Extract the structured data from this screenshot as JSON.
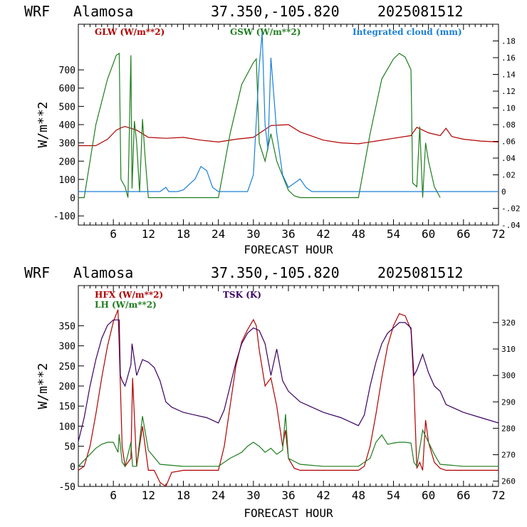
{
  "charts": [
    {
      "header": {
        "model": "WRF",
        "site": "Alamosa",
        "coords": "37.350,-105.820",
        "run": "2025081512"
      },
      "chart_ref": 0
    },
    {
      "header": {
        "model": "WRF",
        "site": "Alamosa",
        "coords": "37.350,-105.820",
        "run": "2025081512"
      },
      "chart_ref": 1
    }
  ],
  "colors": {
    "red": "#b00000",
    "green": "#1e7d1e",
    "blue": "#1a7fd8",
    "purple": "#3a0060",
    "axis": "#000000"
  },
  "chart_data": [
    {
      "type": "line",
      "xlabel": "FORECAST HOUR",
      "ylabel": "W/m**2",
      "xlim": [
        0,
        72
      ],
      "ylim": [
        -150,
        950
      ],
      "xticks": [
        6,
        12,
        18,
        24,
        30,
        36,
        42,
        48,
        54,
        60,
        66,
        72
      ],
      "yticks": [
        -100,
        0,
        100,
        200,
        300,
        400,
        500,
        600,
        700
      ],
      "y2lim": [
        -0.04,
        0.2
      ],
      "y2ticks": [
        -0.04,
        -0.02,
        0,
        0.02,
        0.04,
        0.06,
        0.08,
        0.1,
        0.12,
        0.14,
        0.16,
        0.18
      ],
      "y2ticklabels": [
        "-.04",
        "-.02",
        "0",
        ".02",
        ".04",
        ".06",
        ".08",
        ".10",
        ".12",
        ".14",
        ".16",
        ".18"
      ],
      "series": [
        {
          "name": "GLW (W/m**2)",
          "color": "red",
          "axis": "left",
          "x": [
            0,
            3,
            5,
            6.5,
            7.5,
            8,
            10,
            12,
            15,
            18,
            21,
            24,
            27,
            30,
            33,
            36,
            38,
            42,
            45,
            48,
            51,
            54,
            57,
            58,
            60,
            62,
            63,
            64,
            66,
            69,
            72
          ],
          "y": [
            285,
            285,
            320,
            370,
            385,
            390,
            370,
            330,
            325,
            330,
            315,
            305,
            320,
            330,
            395,
            400,
            360,
            315,
            300,
            295,
            310,
            325,
            340,
            385,
            355,
            340,
            380,
            335,
            320,
            310,
            305
          ]
        },
        {
          "name": "GSW (W/m**2)",
          "color": "green",
          "axis": "left",
          "x": [
            0,
            1,
            3,
            5,
            6.5,
            7,
            7.3,
            8,
            8.5,
            9,
            9.2,
            9.6,
            10,
            10.5,
            11,
            11.5,
            12,
            24,
            26,
            28,
            30,
            30.5,
            31,
            32,
            33,
            34,
            35,
            36,
            37,
            38,
            48,
            50,
            52,
            54,
            55,
            56,
            57,
            57.3,
            58,
            58.5,
            59,
            59.5,
            60,
            61,
            62
          ],
          "y": [
            0,
            0,
            400,
            650,
            780,
            790,
            100,
            60,
            0,
            780,
            50,
            420,
            300,
            30,
            430,
            200,
            0,
            0,
            350,
            620,
            740,
            760,
            300,
            200,
            350,
            200,
            120,
            40,
            10,
            0,
            0,
            350,
            650,
            760,
            790,
            770,
            700,
            80,
            60,
            390,
            0,
            300,
            200,
            60,
            0
          ]
        },
        {
          "name": "Integrated cloud (mm)",
          "color": "blue",
          "axis": "right",
          "x": [
            0,
            14,
            15,
            15.5,
            17,
            18,
            20,
            21,
            22,
            23,
            24,
            29,
            30,
            31,
            31.5,
            32,
            32.5,
            33,
            34,
            35,
            36,
            37,
            38,
            39,
            40,
            72
          ],
          "y": [
            0,
            0,
            0.005,
            0,
            0,
            0.002,
            0.015,
            0.03,
            0.025,
            0.005,
            0,
            0,
            0.02,
            0.15,
            0.19,
            0.08,
            0.05,
            0.16,
            0.07,
            0.02,
            0.005,
            0.01,
            0.015,
            0.005,
            0,
            0
          ]
        }
      ]
    },
    {
      "type": "line",
      "xlabel": "FORECAST HOUR",
      "ylabel": "W/m**2",
      "xlim": [
        0,
        72
      ],
      "ylim": [
        -50,
        450
      ],
      "xticks": [
        6,
        12,
        18,
        24,
        30,
        36,
        42,
        48,
        54,
        60,
        66,
        72
      ],
      "yticks": [
        -50,
        0,
        50,
        100,
        150,
        200,
        250,
        300,
        350
      ],
      "y2lim": [
        258,
        334
      ],
      "y2ticks": [
        260,
        270,
        280,
        290,
        300,
        310,
        320
      ],
      "y2ticklabels": [
        "260",
        "270",
        "280",
        "290",
        "300",
        "310",
        "320"
      ],
      "series": [
        {
          "name": "HFX (W/m**2)",
          "color": "red",
          "axis": "left",
          "x": [
            0,
            1,
            2,
            3,
            4,
            5,
            6,
            6.8,
            7,
            7.5,
            8,
            9,
            9.3,
            10,
            11,
            12,
            13,
            14,
            15,
            16,
            18,
            24,
            25,
            26,
            27,
            28,
            29,
            30,
            30.5,
            31,
            32,
            33,
            34,
            35,
            35.5,
            36,
            37,
            38,
            42,
            48,
            49,
            50,
            51,
            52,
            53,
            54,
            55,
            56,
            57,
            57.5,
            58,
            58.5,
            59,
            59.5,
            60,
            61,
            62,
            63,
            66,
            72
          ],
          "y": [
            -10,
            0,
            50,
            130,
            220,
            300,
            360,
            390,
            300,
            50,
            0,
            20,
            220,
            0,
            100,
            -10,
            -10,
            -40,
            -50,
            -15,
            -10,
            -10,
            50,
            150,
            250,
            310,
            340,
            365,
            350,
            290,
            200,
            220,
            150,
            50,
            90,
            20,
            -5,
            -10,
            -10,
            -10,
            0,
            50,
            130,
            220,
            300,
            350,
            380,
            375,
            340,
            200,
            -5,
            10,
            -10,
            115,
            60,
            10,
            -5,
            -10,
            -10,
            -10
          ]
        },
        {
          "name": "LH  (W/m**2)",
          "color": "green",
          "axis": "left",
          "x": [
            0,
            1,
            2,
            3,
            4,
            5,
            6,
            6.8,
            7,
            7.5,
            8,
            9,
            9.3,
            10,
            11,
            12,
            14,
            18,
            24,
            26,
            28,
            29,
            30,
            31,
            32,
            33,
            34,
            35,
            35.5,
            36,
            38,
            42,
            48,
            50,
            51,
            52,
            53,
            54,
            55,
            56,
            57,
            57.5,
            58,
            59,
            60,
            61,
            62,
            66,
            72
          ],
          "y": [
            0,
            15,
            30,
            45,
            55,
            60,
            60,
            35,
            80,
            10,
            0,
            60,
            0,
            0,
            125,
            40,
            5,
            0,
            0,
            20,
            35,
            50,
            60,
            50,
            35,
            45,
            30,
            40,
            130,
            20,
            5,
            0,
            0,
            20,
            60,
            78,
            55,
            58,
            60,
            60,
            58,
            10,
            0,
            90,
            60,
            30,
            5,
            0,
            0
          ]
        },
        {
          "name": "TSK (K)",
          "color": "purple",
          "axis": "right",
          "x": [
            0,
            1,
            2,
            3,
            4,
            5,
            6,
            7,
            7.2,
            7.5,
            8,
            9,
            9.2,
            10,
            11,
            12,
            13,
            14,
            15,
            16,
            18,
            20,
            22,
            24,
            25,
            26,
            27,
            28,
            29,
            30,
            31,
            32,
            33,
            34,
            35,
            36,
            37,
            38,
            40,
            42,
            45,
            48,
            49,
            50,
            51,
            52,
            53,
            54,
            55,
            56,
            57,
            57.5,
            58,
            59,
            60,
            61,
            62,
            63,
            64,
            66,
            69,
            72
          ],
          "y": [
            275,
            284,
            296,
            306,
            314,
            319,
            321,
            321,
            300,
            298,
            296,
            304,
            312,
            300,
            306,
            305,
            303,
            298,
            290,
            288,
            286,
            285,
            284,
            282,
            287,
            296,
            305,
            312,
            316,
            318,
            317,
            312,
            300,
            310,
            298,
            294,
            292,
            290,
            288,
            286,
            284,
            281,
            285,
            296,
            305,
            312,
            316,
            318,
            320,
            320,
            318,
            300,
            302,
            308,
            301,
            296,
            294,
            289,
            288,
            286,
            284,
            282
          ]
        }
      ]
    }
  ]
}
